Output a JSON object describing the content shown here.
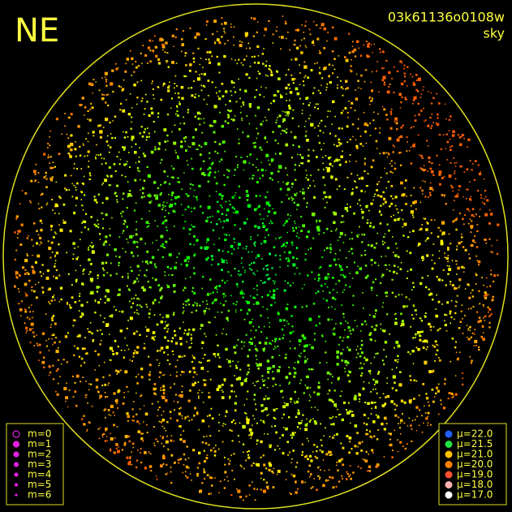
{
  "header": {
    "direction": "NE",
    "frame_id": "03k61136o0108w",
    "mode": "sky"
  },
  "magnitude_legend": {
    "items": [
      "m=0",
      "m=1",
      "m=2",
      "m=3",
      "m=4",
      "m=5",
      "m=6"
    ],
    "color": "#e020e0"
  },
  "brightness_legend": {
    "items": [
      {
        "label": "μ=22.0",
        "color": "#2060ff"
      },
      {
        "label": "μ=21.5",
        "color": "#20e040"
      },
      {
        "label": "μ=21.0",
        "color": "#ffc000"
      },
      {
        "label": "μ=20.0",
        "color": "#ff8000"
      },
      {
        "label": "μ=19.0",
        "color": "#ff5030"
      },
      {
        "label": "μ=18.0",
        "color": "#ffb0b0"
      },
      {
        "label": "μ=17.0",
        "color": "#ffffff"
      }
    ]
  }
}
